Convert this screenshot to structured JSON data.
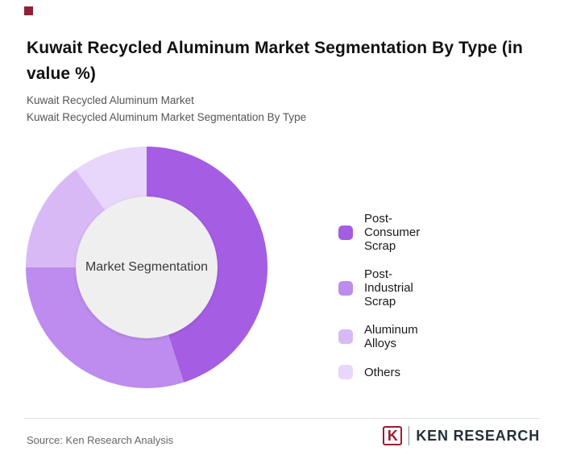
{
  "brand": {
    "mark_color": "#8e2236"
  },
  "header": {
    "title": "Kuwait Recycled Aluminum Market Segmentation By Type (in value %)",
    "subtitle_line1": "Kuwait Recycled Aluminum Market",
    "subtitle_line2": "Kuwait Recycled Aluminum Market Segmentation By Type"
  },
  "chart_data": {
    "type": "pie",
    "donut": true,
    "center_label": "Market Segmentation",
    "categories": [
      "Post-Consumer Scrap",
      "Post-Industrial Scrap",
      "Aluminum Alloys",
      "Others"
    ],
    "values": [
      45,
      30,
      15,
      10
    ],
    "colors": [
      "#a55de4",
      "#bd8cee",
      "#d8b9f6",
      "#e8d6fb"
    ],
    "legend_position": "right",
    "start_angle_deg": 0,
    "direction": "clockwise"
  },
  "footer": {
    "source": "Source: Ken Research Analysis",
    "logo_monogram": "K",
    "logo_text": "KEN RESEARCH"
  }
}
